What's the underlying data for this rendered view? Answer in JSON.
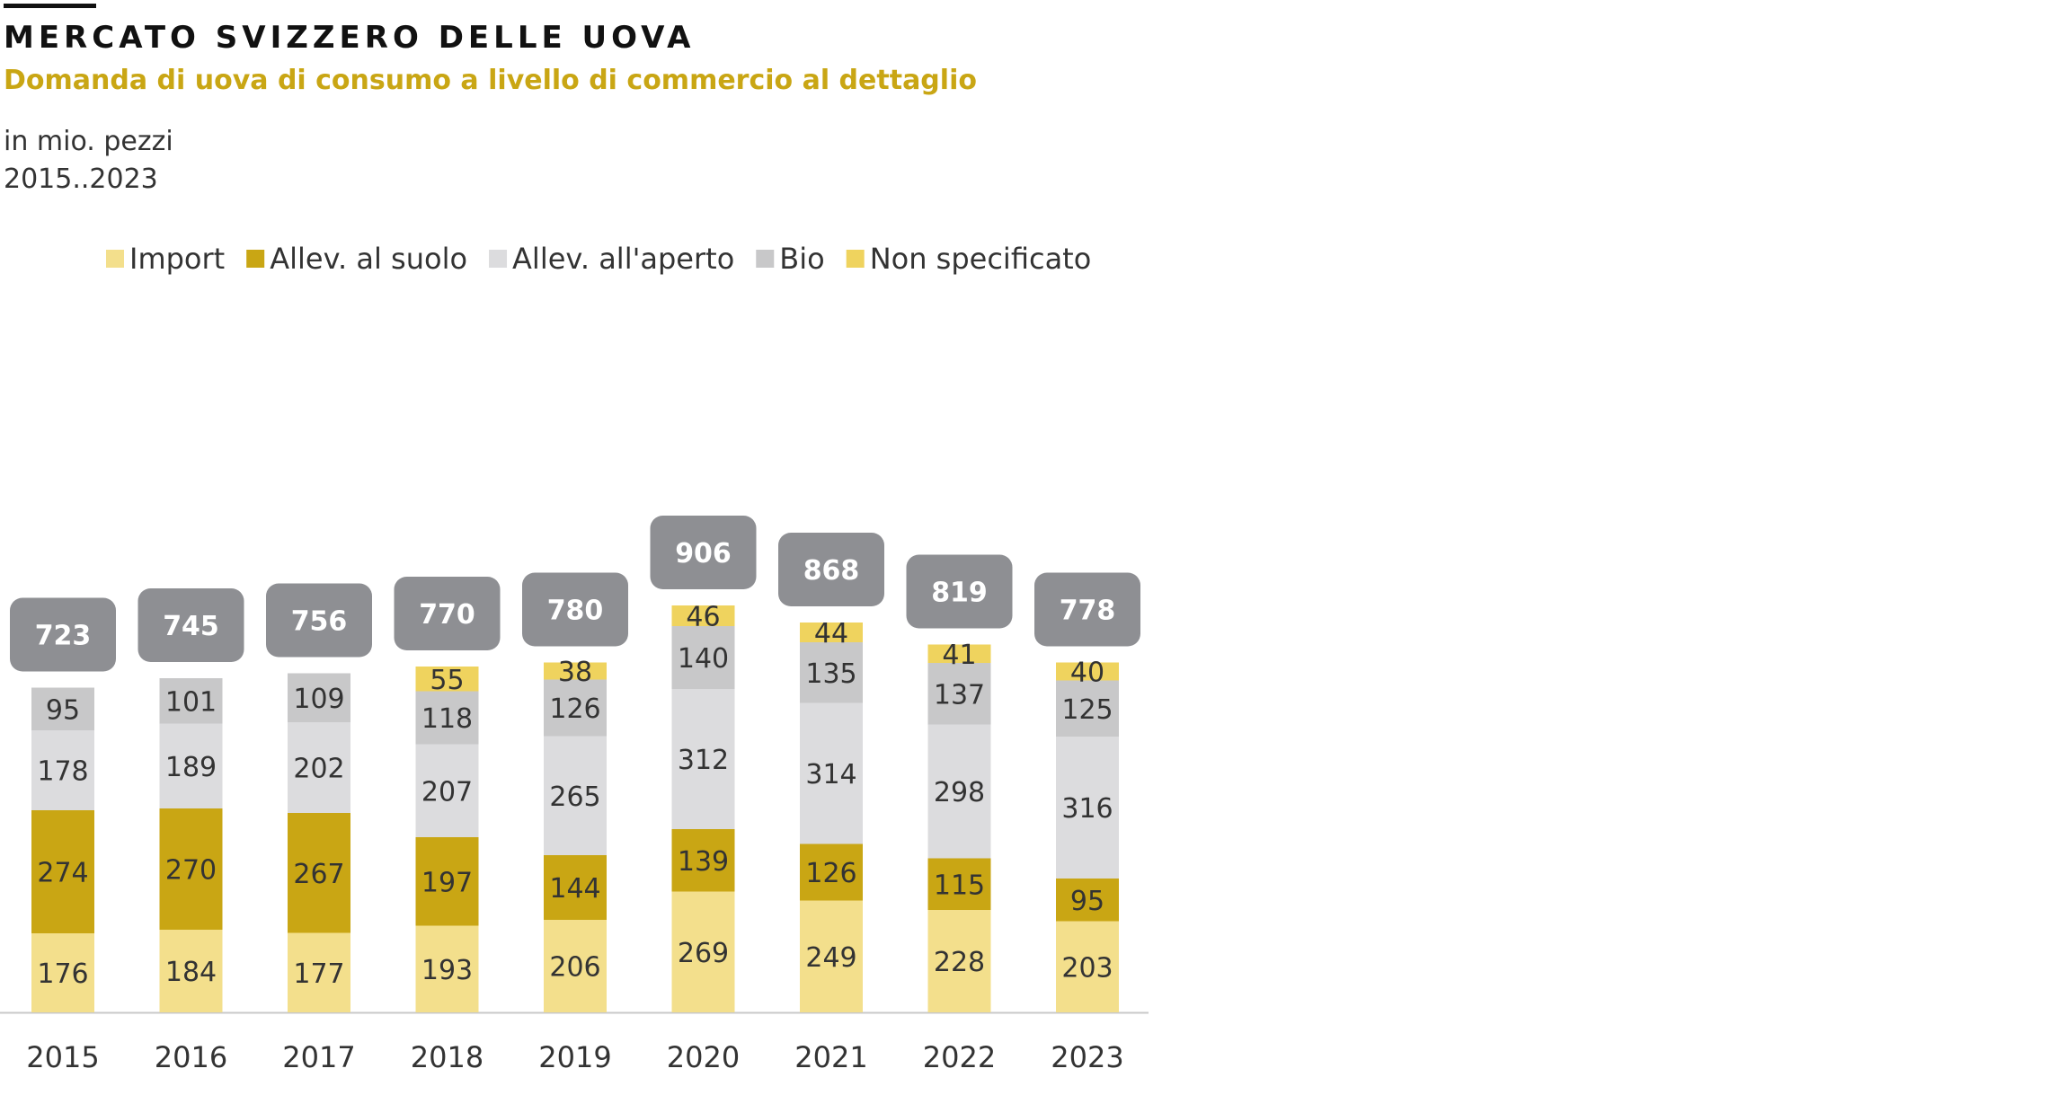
{
  "header": {
    "title": "MERCATO SVIZZERO DELLE UOVA",
    "subtitle": "Domanda di uova di consumo a livello di commercio al dettaglio",
    "unit": "in mio. pezzi",
    "range": "2015..2023"
  },
  "chart_data": {
    "type": "bar",
    "stacked": true,
    "title": "MERCATO SVIZZERO DELLE UOVA",
    "subtitle": "Domanda di uova di consumo a livello di commercio al dettaglio",
    "ylabel": "in mio. pezzi",
    "legend_position": "top-left",
    "categories": [
      "2015",
      "2016",
      "2017",
      "2018",
      "2019",
      "2020",
      "2021",
      "2022",
      "2023"
    ],
    "series": [
      {
        "name": "Import",
        "color": "#f3df8c",
        "values": [
          176,
          184,
          177,
          193,
          206,
          269,
          249,
          228,
          203
        ]
      },
      {
        "name": "Allev. al suolo",
        "color": "#c9a614",
        "values": [
          274,
          270,
          267,
          197,
          144,
          139,
          126,
          115,
          95
        ]
      },
      {
        "name": "Allev. all'aperto",
        "color": "#dcdcde",
        "values": [
          178,
          189,
          202,
          207,
          265,
          312,
          314,
          298,
          316
        ]
      },
      {
        "name": "Bio",
        "color": "#c8c8c9",
        "values": [
          95,
          101,
          109,
          118,
          126,
          140,
          135,
          137,
          125
        ]
      },
      {
        "name": "Non specificato",
        "color": "#efd35e",
        "values": [
          null,
          null,
          null,
          55,
          38,
          46,
          44,
          41,
          40
        ]
      }
    ],
    "totals": [
      723,
      745,
      756,
      770,
      780,
      906,
      868,
      819,
      778
    ],
    "total_box_color": "#8e8f93"
  }
}
